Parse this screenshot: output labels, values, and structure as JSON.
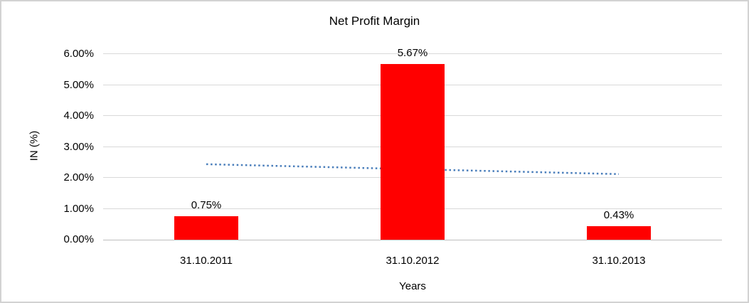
{
  "chart_data": {
    "type": "bar",
    "title": "Net Profit Margin",
    "xlabel": "Years",
    "ylabel": "IN (%)",
    "categories": [
      "31.10.2011",
      "31.10.2012",
      "31.10.2013"
    ],
    "values": [
      0.75,
      5.67,
      0.43
    ],
    "value_labels": [
      "0.75%",
      "5.67%",
      "0.43%"
    ],
    "ylim": [
      0,
      6
    ],
    "ytick_labels": [
      "0.00%",
      "1.00%",
      "2.00%",
      "3.00%",
      "4.00%",
      "5.00%",
      "6.00%"
    ],
    "grid": true,
    "legend": "none",
    "bar_color": "#ff0000",
    "gridline_color": "#d9d9d9",
    "trendline": {
      "type": "linear",
      "style": "dotted",
      "color": "#4a7ebb",
      "start_value": 2.44,
      "end_value": 2.12
    }
  }
}
